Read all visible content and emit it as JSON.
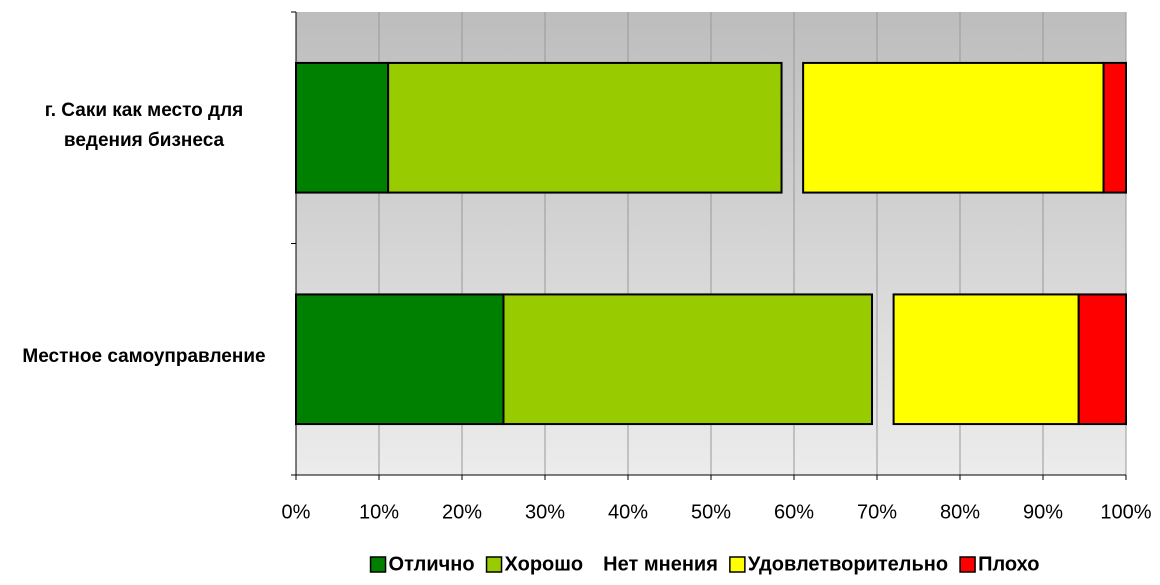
{
  "chart_data": {
    "type": "stacked_barh",
    "categories": [
      "г. Саки как место для ведения бизнеса",
      "Местное самоуправление"
    ],
    "series": [
      {
        "name": "Отлично",
        "color": "#008000",
        "values": [
          11.1,
          25.0
        ]
      },
      {
        "name": "Хорошо",
        "color": "#99cc00",
        "values": [
          47.4,
          44.4
        ]
      },
      {
        "name": "Нет мнения",
        "color": "none",
        "values": [
          2.6,
          2.6
        ]
      },
      {
        "name": "Удовлетворительно",
        "color": "#ffff00",
        "values": [
          36.2,
          22.3
        ]
      },
      {
        "name": "Плохо",
        "color": "#ff0000",
        "values": [
          2.7,
          5.7
        ]
      }
    ],
    "xlim": [
      0,
      100
    ],
    "xticks": [
      {
        "value": 0,
        "label": "0%"
      },
      {
        "value": 10,
        "label": "10%"
      },
      {
        "value": 20,
        "label": "20%"
      },
      {
        "value": 30,
        "label": "30%"
      },
      {
        "value": 40,
        "label": "40%"
      },
      {
        "value": 50,
        "label": "50%"
      },
      {
        "value": 60,
        "label": "60%"
      },
      {
        "value": 70,
        "label": "70%"
      },
      {
        "value": 80,
        "label": "80%"
      },
      {
        "value": 90,
        "label": "90%"
      },
      {
        "value": 100,
        "label": "100%"
      }
    ],
    "grid": true,
    "legend": "bottom"
  }
}
